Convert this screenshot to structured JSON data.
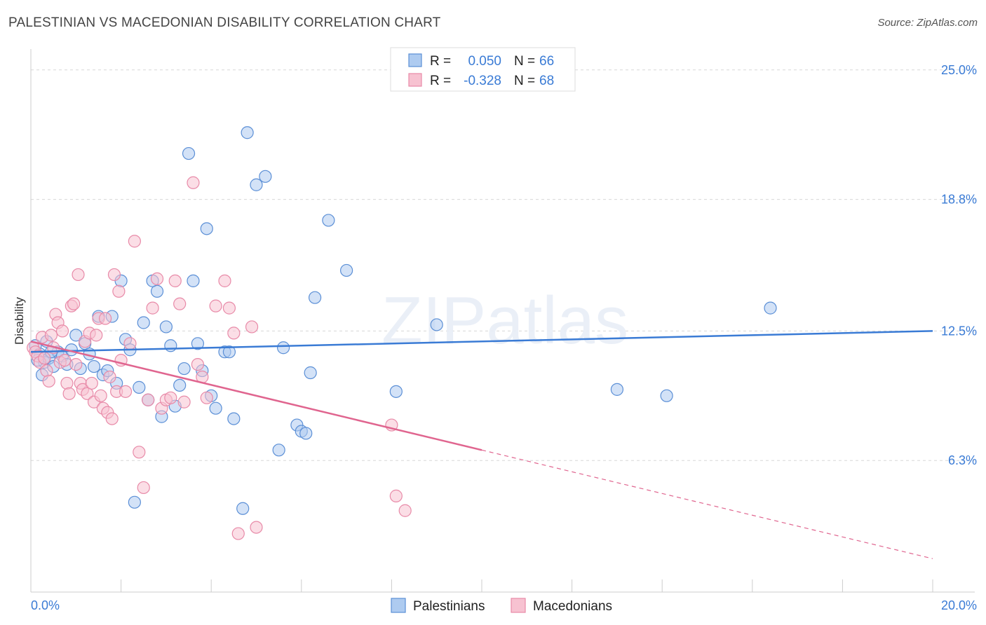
{
  "title": "PALESTINIAN VS MACEDONIAN DISABILITY CORRELATION CHART",
  "source": "Source: ZipAtlas.com",
  "watermark": "ZIPatlas",
  "colors": {
    "blue_fill": "#aecbf0",
    "blue_stroke": "#5b8fd6",
    "blue_line": "#3a7bd5",
    "pink_fill": "#f7c2d1",
    "pink_stroke": "#e88aa8",
    "pink_line": "#e0658f",
    "axis_label": "#3a7bd5",
    "grid": "#d8d8d8"
  },
  "chart_data": {
    "type": "scatter",
    "title": "PALESTINIAN VS MACEDONIAN DISABILITY CORRELATION CHART",
    "xlabel": "",
    "ylabel": "Disability",
    "xlim": [
      0,
      20
    ],
    "ylim": [
      0,
      26
    ],
    "x_tick_labels": [
      "0.0%",
      "20.0%"
    ],
    "y_ticks": [
      6.3,
      12.5,
      18.8,
      25.0
    ],
    "y_tick_labels": [
      "6.3%",
      "12.5%",
      "18.8%",
      "25.0%"
    ],
    "grid": true,
    "legend_position": "top-center",
    "bottom_legend": [
      "Palestinians",
      "Macedonians"
    ],
    "stats": [
      {
        "r_label": "R =",
        "r": "0.050",
        "n_label": "N =",
        "n": "66"
      },
      {
        "r_label": "R =",
        "r": "-0.328",
        "n_label": "N =",
        "n": "68"
      }
    ],
    "series": [
      {
        "name": "Palestinians",
        "color": "#5b8fd6",
        "trend": {
          "x": [
            0,
            20
          ],
          "y": [
            11.5,
            12.5
          ],
          "solid_until": 20
        },
        "points": [
          [
            0.1,
            11.8
          ],
          [
            0.2,
            11.4
          ],
          [
            0.3,
            11.0
          ],
          [
            0.4,
            11.2
          ],
          [
            0.5,
            10.8
          ],
          [
            0.6,
            11.5
          ],
          [
            0.7,
            11.3
          ],
          [
            0.8,
            10.9
          ],
          [
            0.9,
            11.6
          ],
          [
            1.0,
            12.3
          ],
          [
            1.1,
            10.7
          ],
          [
            1.2,
            11.9
          ],
          [
            1.3,
            11.4
          ],
          [
            1.4,
            10.8
          ],
          [
            1.5,
            13.2
          ],
          [
            1.6,
            10.4
          ],
          [
            1.7,
            10.6
          ],
          [
            1.8,
            13.2
          ],
          [
            1.9,
            10.0
          ],
          [
            2.0,
            14.9
          ],
          [
            2.1,
            12.1
          ],
          [
            2.2,
            11.6
          ],
          [
            2.3,
            4.3
          ],
          [
            2.4,
            9.8
          ],
          [
            2.5,
            12.9
          ],
          [
            2.6,
            9.2
          ],
          [
            2.7,
            14.9
          ],
          [
            2.8,
            14.4
          ],
          [
            2.9,
            8.4
          ],
          [
            3.0,
            12.7
          ],
          [
            3.1,
            11.8
          ],
          [
            3.2,
            8.9
          ],
          [
            3.3,
            9.9
          ],
          [
            3.4,
            10.7
          ],
          [
            3.5,
            21.0
          ],
          [
            3.6,
            14.9
          ],
          [
            3.7,
            11.9
          ],
          [
            3.8,
            10.6
          ],
          [
            3.9,
            17.4
          ],
          [
            4.0,
            9.4
          ],
          [
            4.1,
            8.8
          ],
          [
            4.3,
            11.5
          ],
          [
            4.4,
            11.5
          ],
          [
            4.5,
            8.3
          ],
          [
            4.7,
            4.0
          ],
          [
            4.8,
            22.0
          ],
          [
            5.0,
            19.5
          ],
          [
            5.2,
            19.9
          ],
          [
            5.5,
            6.8
          ],
          [
            5.6,
            11.7
          ],
          [
            5.9,
            8.0
          ],
          [
            6.0,
            7.7
          ],
          [
            6.1,
            7.6
          ],
          [
            6.2,
            10.5
          ],
          [
            6.3,
            14.1
          ],
          [
            6.6,
            17.8
          ],
          [
            7.0,
            15.4
          ],
          [
            8.1,
            9.6
          ],
          [
            9.0,
            12.8
          ],
          [
            13.0,
            9.7
          ],
          [
            14.1,
            9.4
          ],
          [
            16.4,
            13.6
          ],
          [
            0.15,
            11.1
          ],
          [
            0.25,
            10.4
          ],
          [
            0.35,
            12.0
          ],
          [
            0.45,
            11.5
          ]
        ]
      },
      {
        "name": "Macedonians",
        "color": "#e88aa8",
        "trend": {
          "x": [
            0,
            20
          ],
          "y": [
            12.0,
            1.6
          ],
          "solid_until": 10
        },
        "points": [
          [
            0.05,
            11.7
          ],
          [
            0.1,
            11.5
          ],
          [
            0.15,
            11.3
          ],
          [
            0.2,
            11.0
          ],
          [
            0.25,
            12.2
          ],
          [
            0.3,
            11.2
          ],
          [
            0.35,
            10.6
          ],
          [
            0.4,
            10.1
          ],
          [
            0.45,
            12.3
          ],
          [
            0.5,
            11.7
          ],
          [
            0.55,
            13.3
          ],
          [
            0.6,
            12.9
          ],
          [
            0.65,
            11.0
          ],
          [
            0.7,
            12.5
          ],
          [
            0.75,
            11.1
          ],
          [
            0.8,
            10.0
          ],
          [
            0.85,
            9.5
          ],
          [
            0.9,
            13.7
          ],
          [
            0.95,
            13.8
          ],
          [
            1.0,
            10.9
          ],
          [
            1.05,
            15.2
          ],
          [
            1.1,
            10.0
          ],
          [
            1.15,
            9.7
          ],
          [
            1.2,
            12.0
          ],
          [
            1.25,
            9.5
          ],
          [
            1.3,
            12.4
          ],
          [
            1.35,
            10.0
          ],
          [
            1.4,
            9.1
          ],
          [
            1.45,
            12.3
          ],
          [
            1.5,
            13.1
          ],
          [
            1.55,
            9.4
          ],
          [
            1.6,
            8.8
          ],
          [
            1.65,
            13.1
          ],
          [
            1.7,
            8.6
          ],
          [
            1.75,
            10.3
          ],
          [
            1.8,
            8.3
          ],
          [
            1.85,
            15.2
          ],
          [
            1.9,
            9.6
          ],
          [
            1.95,
            14.4
          ],
          [
            2.0,
            11.1
          ],
          [
            2.1,
            9.6
          ],
          [
            2.2,
            11.9
          ],
          [
            2.3,
            16.8
          ],
          [
            2.4,
            6.7
          ],
          [
            2.5,
            5.0
          ],
          [
            2.6,
            9.2
          ],
          [
            2.7,
            13.6
          ],
          [
            2.8,
            15.0
          ],
          [
            2.9,
            8.8
          ],
          [
            3.0,
            9.2
          ],
          [
            3.1,
            9.3
          ],
          [
            3.2,
            14.9
          ],
          [
            3.3,
            13.8
          ],
          [
            3.4,
            9.1
          ],
          [
            3.6,
            19.6
          ],
          [
            3.7,
            10.9
          ],
          [
            3.8,
            10.3
          ],
          [
            3.9,
            9.3
          ],
          [
            4.1,
            13.7
          ],
          [
            4.3,
            14.9
          ],
          [
            4.4,
            13.6
          ],
          [
            4.5,
            12.4
          ],
          [
            4.6,
            2.8
          ],
          [
            4.9,
            12.7
          ],
          [
            5.0,
            3.1
          ],
          [
            8.0,
            8.0
          ],
          [
            8.1,
            4.6
          ],
          [
            8.3,
            3.9
          ]
        ]
      }
    ]
  }
}
